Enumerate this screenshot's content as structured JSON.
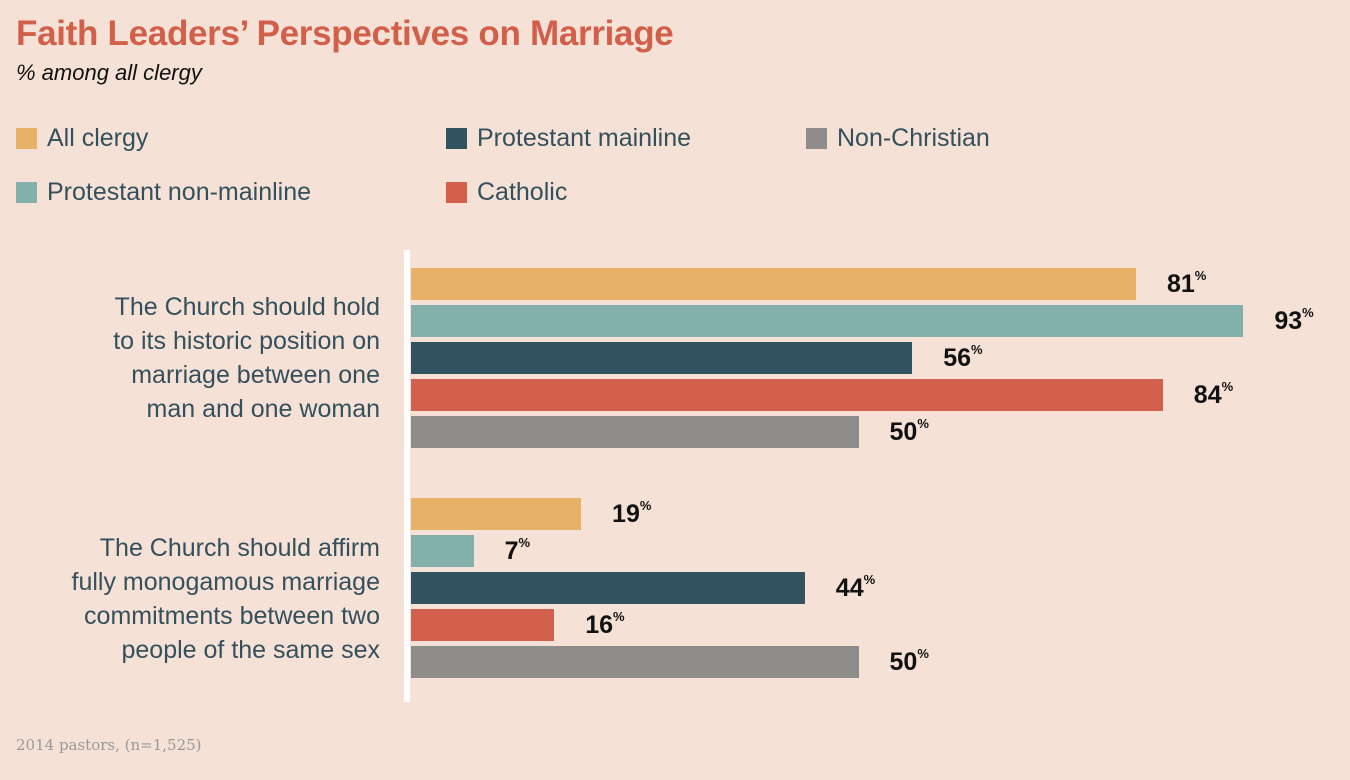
{
  "chart_data": {
    "type": "bar",
    "orientation": "horizontal",
    "title": "Faith Leaders’ Perspectives on Marriage",
    "subtitle": "% among all clergy",
    "categories": [
      "The Church should hold to its historic position on marriage between one man and one woman",
      "The Church should affirm fully monogamous marriage commitments between two people of the same sex"
    ],
    "series": [
      {
        "name": "All clergy",
        "color": "#e8b168",
        "values": [
          81,
          19
        ]
      },
      {
        "name": "Protestant non-mainline",
        "color": "#84b0ab",
        "values": [
          93,
          7
        ]
      },
      {
        "name": "Protestant mainline",
        "color": "#33525f",
        "values": [
          56,
          44
        ]
      },
      {
        "name": "Catholic",
        "color": "#d2604c",
        "values": [
          84,
          16
        ]
      },
      {
        "name": "Non-Christian",
        "color": "#8e8d8c",
        "values": [
          50,
          50
        ]
      }
    ],
    "value_suffix": "%",
    "xlim": [
      0,
      100
    ],
    "grid": false,
    "legend": "top",
    "footnote": "2014 pastors, (n=1,525)"
  }
}
